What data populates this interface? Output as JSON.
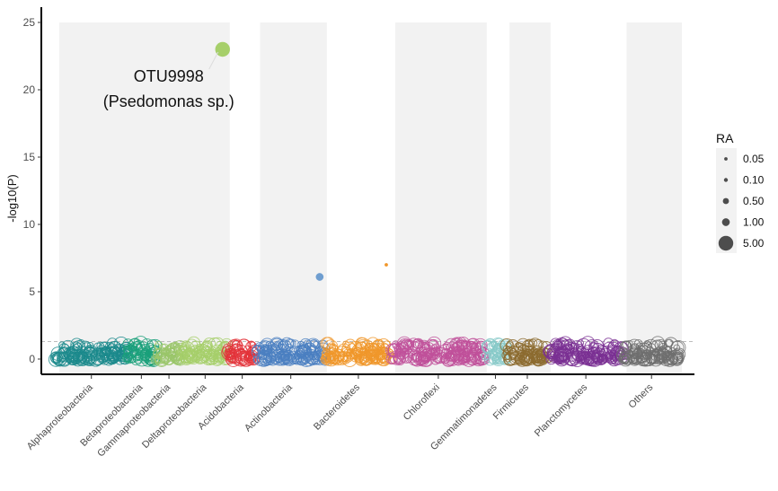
{
  "chart_data": {
    "type": "scatter",
    "title": "",
    "xlabel": "",
    "ylabel": "-log10(P)",
    "ylim": [
      -1.2,
      25
    ],
    "yticks": [
      0,
      5,
      10,
      15,
      20,
      25
    ],
    "grid": false,
    "threshold_line": 1.3,
    "categories": [
      {
        "name": "Alphaproteobacteria",
        "color": "#1b8a8c",
        "count": 75
      },
      {
        "name": "Betaproteobacteria",
        "color": "#1aa07a",
        "count": 30
      },
      {
        "name": "Gammaproteobacteria",
        "color": "#9ac56a",
        "count": 28
      },
      {
        "name": "Deltaproteobacteria",
        "color": "#a6cf6a",
        "count": 48
      },
      {
        "name": "Acidobacteria",
        "color": "#e3333a",
        "count": 30
      },
      {
        "name": "Actinobacteria",
        "color": "#4a7fc1",
        "count": 72
      },
      {
        "name": "Bacteroidetes",
        "color": "#f0962a",
        "count": 70
      },
      {
        "name": "Chloroflexi",
        "color": "#c0509a",
        "count": 98
      },
      {
        "name": "Gemmatimonadetes",
        "color": "#86c9c8",
        "count": 22
      },
      {
        "name": "Firmicutes",
        "color": "#8c6b2f",
        "count": 45
      },
      {
        "name": "Planctomycetes",
        "color": "#7a3093",
        "count": 78
      },
      {
        "name": "Others",
        "color": "#6e6e6e",
        "count": 60
      }
    ],
    "shaded_bands": [
      [
        0,
        1,
        2,
        3
      ],
      [
        5
      ],
      [
        7
      ],
      [
        9
      ],
      [
        11
      ]
    ],
    "highlights": [
      {
        "category": "Deltaproteobacteria",
        "y": 23.0,
        "ra": 5.0,
        "color": "#a6cf6a"
      },
      {
        "category": "Actinobacteria",
        "y": 6.1,
        "ra": 1.0,
        "color": "#6f9ed0"
      },
      {
        "category": "Bacteroidetes",
        "y": 7.0,
        "ra": 0.05,
        "color": "#f0962a"
      }
    ],
    "annotation": {
      "line1": "OTU9998",
      "line2": "(Psedomonas sp.)"
    },
    "legend": {
      "title": "RA",
      "position": "right",
      "items": [
        {
          "label": "0.05",
          "value": 0.05
        },
        {
          "label": "0.10",
          "value": 0.1
        },
        {
          "label": "0.50",
          "value": 0.5
        },
        {
          "label": "1.00",
          "value": 1.0
        },
        {
          "label": "5.00",
          "value": 5.0
        }
      ]
    }
  }
}
